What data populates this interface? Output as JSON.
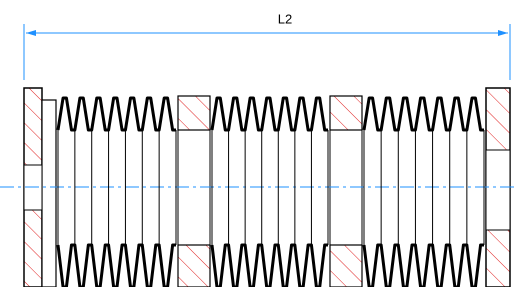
{
  "dimension": {
    "label": "L2"
  }
}
